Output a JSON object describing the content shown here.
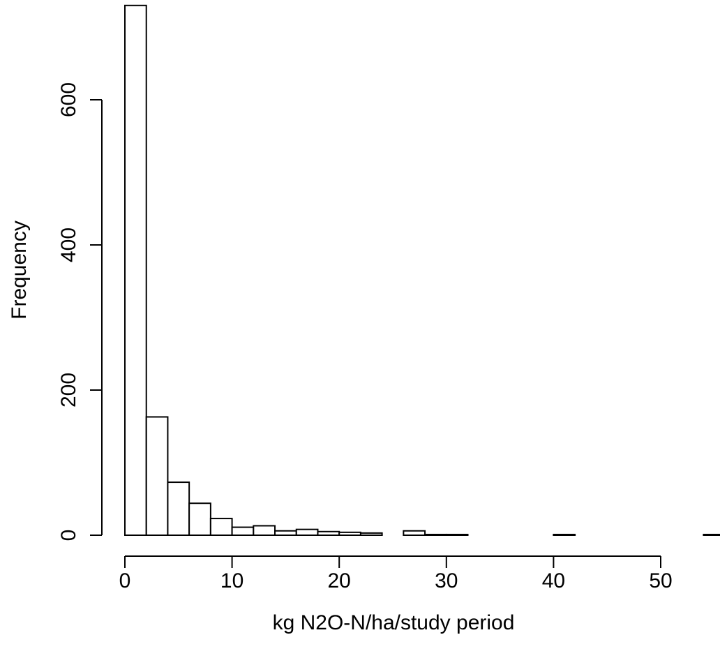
{
  "chart_data": {
    "type": "bar",
    "title": "",
    "xlabel": "kg N2O-N/ha/study period",
    "ylabel": "Frequency",
    "bin_width": 2,
    "bins_start": [
      0,
      2,
      4,
      6,
      8,
      10,
      12,
      14,
      16,
      18,
      20,
      22,
      24,
      26,
      28,
      30,
      32,
      34,
      36,
      38,
      40,
      42,
      44,
      46,
      48,
      50,
      52,
      54
    ],
    "values": [
      730,
      163,
      73,
      44,
      23,
      11,
      13,
      6,
      8,
      5,
      4,
      3,
      0,
      6,
      1,
      1,
      0,
      0,
      0,
      0,
      1,
      0,
      0,
      0,
      0,
      0,
      0,
      1
    ],
    "x_ticks": [
      0,
      10,
      20,
      30,
      40,
      50
    ],
    "y_ticks": [
      0,
      200,
      400,
      600
    ],
    "xlim": [
      0,
      56
    ],
    "ylim": [
      0,
      730
    ],
    "grid": false,
    "legend": "none"
  }
}
